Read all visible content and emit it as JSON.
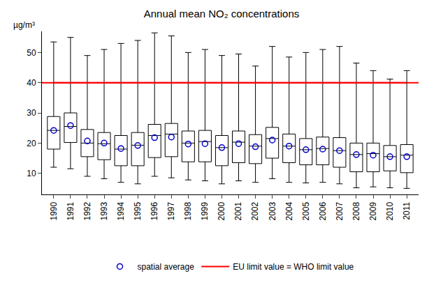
{
  "chart_data": {
    "type": "box",
    "title": "Annual mean NO₂ concentrations",
    "y_label": "µg/m³",
    "categories": [
      "1990",
      "1991",
      "1992",
      "1993",
      "1994",
      "1995",
      "1996",
      "1997",
      "1998",
      "1999",
      "2000",
      "2001",
      "2002",
      "2003",
      "2004",
      "2005",
      "2006",
      "2007",
      "2008",
      "2009",
      "2010",
      "2011"
    ],
    "lower_whisker": [
      12,
      11.5,
      9,
      8.2,
      7,
      6.5,
      9,
      8.5,
      7.8,
      7.5,
      6.5,
      7.5,
      7,
      8.2,
      7,
      6.8,
      7,
      6.5,
      5.2,
      5.5,
      5.2,
      5
    ],
    "q1": [
      18,
      20.2,
      15.5,
      14.5,
      12.5,
      12.5,
      15.2,
      15.5,
      13.8,
      13.8,
      12.5,
      13.5,
      13.2,
      15,
      13.5,
      12.8,
      12.8,
      12,
      10.5,
      10.5,
      10.8,
      10.2
    ],
    "median": [
      24.2,
      25.5,
      20,
      19.8,
      18,
      19.3,
      22.5,
      23,
      20,
      20.5,
      18.5,
      20.3,
      19,
      21.5,
      19,
      17.8,
      18.2,
      17.5,
      16.2,
      16.5,
      15.5,
      16
    ],
    "q3": [
      28.8,
      30,
      24.5,
      23.5,
      22.5,
      23.5,
      26.2,
      26.5,
      24,
      24.2,
      22.5,
      24,
      22.8,
      25.2,
      23,
      21.5,
      22,
      21.8,
      20,
      20,
      19.2,
      19.5
    ],
    "upper_whisker": [
      53.5,
      55,
      49,
      51,
      53,
      54,
      56.5,
      55.5,
      50,
      51,
      49,
      49.5,
      45.5,
      52,
      48.5,
      50,
      51,
      52,
      46.5,
      44,
      41.2,
      44
    ],
    "series": [
      {
        "name": "spatial average",
        "color": "#0000cc",
        "marker": "open circle",
        "values": [
          24.2,
          25.8,
          20.7,
          20,
          18.2,
          19.2,
          21.8,
          22,
          19.7,
          19.8,
          18.5,
          19.8,
          18.8,
          21,
          19,
          17.8,
          18,
          17.5,
          16.2,
          16,
          15.5,
          15.5
        ]
      }
    ],
    "reference_line": {
      "name": "EU limit value = WHO limit value",
      "value": 40,
      "color": "#ff0000"
    },
    "ylim": [
      3,
      57
    ],
    "yticks": [
      10,
      20,
      30,
      40,
      50
    ],
    "legend": "bottom"
  }
}
